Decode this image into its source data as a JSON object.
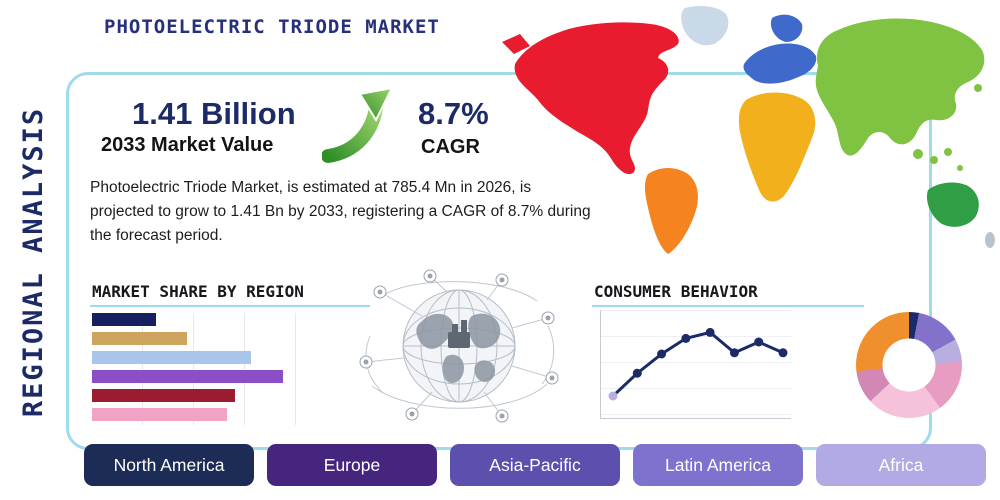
{
  "header": {
    "title": "PHOTOELECTRIC TRIODE MARKET",
    "side_label": "REGIONAL ANALYSIS"
  },
  "stats": {
    "market_value": "1.41 Billion",
    "market_value_label": "2033 Market Value",
    "cagr_value": "8.7%",
    "cagr_label": "CAGR",
    "description": "Photoelectric Triode Market, is estimated at 785.4 Mn in 2026, is projected to grow to 1.41 Bn by 2033, registering a CAGR of 8.7% during the forecast period."
  },
  "sections": {
    "market_share_title": "MARKET SHARE BY REGION",
    "consumer_behavior_title": "CONSUMER BEHAVIOR"
  },
  "chart_data": [
    {
      "type": "bar",
      "title": "MARKET SHARE BY REGION",
      "orientation": "horizontal",
      "values": [
        8,
        12,
        20,
        24,
        18,
        17
      ],
      "unit": "estimated share (no axis labels shown)",
      "colors": [
        "#16205f",
        "#cfa45e",
        "#a9c6ea",
        "#8a4fc8",
        "#9b1b30",
        "#f0a3c4"
      ],
      "grid": true
    },
    {
      "type": "line",
      "title": "CONSUMER BEHAVIOR",
      "x": [
        1,
        2,
        3,
        4,
        5,
        6,
        7,
        8
      ],
      "values": [
        1.0,
        2.9,
        4.5,
        5.8,
        6.3,
        4.6,
        5.5,
        4.6
      ],
      "ylim": [
        0,
        7
      ],
      "colors": {
        "line": "#1c2a68",
        "first_marker": "#b9aee0"
      },
      "grid": true
    },
    {
      "type": "pie",
      "donut": true,
      "segments": [
        {
          "color": "#1c2a68",
          "value": 3
        },
        {
          "color": "#8471c9",
          "value": 14
        },
        {
          "color": "#b9aee0",
          "value": 7
        },
        {
          "color": "#e79cc2",
          "value": 16
        },
        {
          "color": "#f6c1da",
          "value": 23
        },
        {
          "color": "#d287b4",
          "value": 10
        },
        {
          "color": "#ef8f2e",
          "value": 27
        }
      ]
    }
  ],
  "map": {
    "colors": {
      "north_america": "#e81c2e",
      "greenland": "#c9d9e8",
      "south_america": "#f5831f",
      "europe": "#3f6acc",
      "africa": "#f2b11c",
      "asia": "#80c242",
      "australia": "#2f9e44",
      "new_zealand": "#b9c3cc"
    }
  },
  "region_buttons": [
    {
      "label": "North America",
      "color": "#1d2b57"
    },
    {
      "label": "Europe",
      "color": "#46257e"
    },
    {
      "label": "Asia-Pacific",
      "color": "#5b50ae"
    },
    {
      "label": "Latin America",
      "color": "#7e72cf"
    },
    {
      "label": "Africa",
      "color": "#b2aae4"
    }
  ],
  "theme": {
    "accent_blue": "#9edbec",
    "navy": "#1c2a68",
    "arrow_green": "#5cb332"
  }
}
